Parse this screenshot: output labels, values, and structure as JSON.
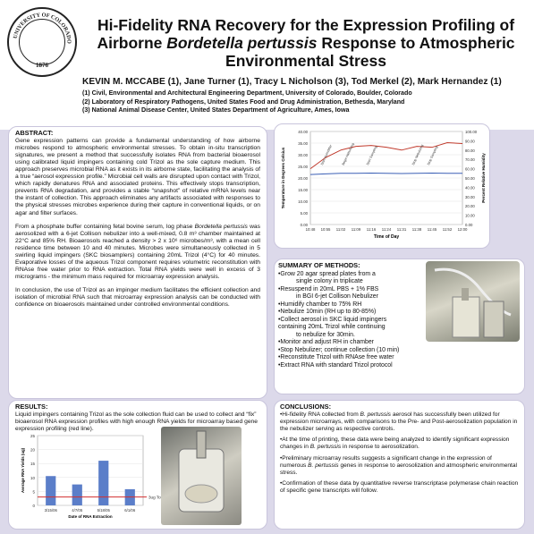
{
  "header": {
    "seal": {
      "text": "UNIVERSITY OF COLORADO",
      "year": "1876"
    },
    "title_1": "Hi-Fidelity RNA Recovery for the Expression Profiling of",
    "title_2a": "Airborne ",
    "title_2b": "Bordetella pertussis",
    "title_2c": " Response to Atmospheric",
    "title_3": "Environmental Stress",
    "authors": "KEVIN M. MCCABE (1), Jane Turner (1), Tracy L Nicholson (3), Tod Merkel (2), Mark Hernandez (1)",
    "affiliations": [
      "(1) Civil, Environmental and Architectural Engineering Department, University of Colorado, Boulder, Colorado",
      "(2) Laboratory of Respiratory Pathogens, United States Food and Drug Administration, Bethesda, Maryland",
      "(3) National Animal Disease Center, United States Department of Agriculture, Ames, Iowa"
    ]
  },
  "abstract": {
    "heading": "ABSTRACT:",
    "p1": "Gene expression patterns can provide a fundamental understanding of how airborne microbes respond to atmospheric environmental stresses. To obtain in-situ transcription signatures, we present a method that successfully isolates RNA from bacterial bioaerosol using calibrated liquid impingers containing cold Trizol as the sole capture medium. This approach preserves microbial RNA as it exists in its airborne state, facilitating the analysis of a true “aerosol expression profile.” Microbial cell walls are disrupted upon contact with Trizol, which rapidly denatures RNA and associated proteins. This effectively stops transcription, prevents RNA degradation, and provides a stable “snapshot” of relative mRNA levels near the instant of collection. This approach eliminates any artifacts associated with responses to the physical stresses microbes experience during their capture in conventional liquids, or on agar and filter surfaces.",
    "p2a": "From a phosphate buffer containing fetal bovine serum, log phase ",
    "p2b": "Bordetella pertussis",
    "p2c": " was aerosolized with a 6-jet Collison nebulizer into a well-mixed, 0.8 m³ chamber maintained at 22°C and 85% RH. Bioaerosols reached a density > 2 x 10⁶ microbes/m³, with a mean cell residence time between 10 and 40 minutes. Microbes were simultaneously collected in 5 swirling liquid impingers (SKC biosamplers) containing 20mL Trizol (4°C) for 40 minutes. Evaporative losses of the aqueous Trizol component requires volumetric reconstitution with RNAse free water prior to RNA extraction. Total RNA yields were well in excess of 3 micrograms - the minimum mass required for microarray expression analysis.",
    "p3": "In conclusion, the use of Trizol as an impinger medium facilitates the efficient collection and isolation of microbial RNA such that microarray expression analysis can be conducted with confidence on bioaerosols maintained under controlled environmental conditions."
  },
  "results": {
    "heading": "RESULTS:",
    "text": "Liquid impingers containing Trizol as the sole collection fluid can be used to collect and “fix” bioaerosol RNA expression profiles with high enough RNA yields for microarray based gene expression profiling (red line)."
  },
  "methods": {
    "heading": "SUMMARY OF METHODS:",
    "items": [
      "•Grow 20 agar spread plates from a",
      "single colony in triplicate",
      "•Resuspend in 20mL PBS + 1% FBS",
      "in BGI 6-jet Collison Nebulizer",
      "•Humidify chamber to 75% RH",
      "•Nebulize 10min (RH up to 80-85%)",
      "•Collect aerosol in SKC liquid impingers",
      "containing 20mL Trizol while continuing",
      "to nebulize for 30min.",
      "•Monitor and adjust RH in chamber",
      "•Stop Nebulizer; continue collection (10 min)",
      "•Reconstitute Trizol with RNAse free water",
      "•Extract RNA with standard Trizol protocol"
    ]
  },
  "conclusions": {
    "heading": "CONCLUSIONS:",
    "c1a": "•Hi-fidelity RNA collected from ",
    "c1b": "B. pertussis",
    "c1c": " aerosol has successfully been utilized for expression microarrays, with comparisons to the Pre- and Post-aerosolization population in the nebulizer serving as respective controls.",
    "c2a": "•At the time of printing, these data were being analyzed to identify significant expression changes in ",
    "c2b": "B. pertussis",
    "c2c": " in response to aerosolization.",
    "c3a": "•Preliminary microarray results suggests a significant change in the expression of numerous ",
    "c3b": "B. pertussis",
    "c3c": " genes in response to aerosolization and atmospheric environmental stress.",
    "c4": "•Confirmation of these data by quantitative reverse transcriptase polymerase chain reaction of specific gene transcripts will follow."
  },
  "chart_data": [
    {
      "type": "line",
      "title": "",
      "xlabel": "Time of Day",
      "ylabel": "Temperature in Degrees Celsius",
      "y2label": "Percent Relative Humidity",
      "x": [
        "10:48",
        "10:55",
        "11:02",
        "11:09",
        "11:16",
        "11:24",
        "11:31",
        "11:38",
        "11:45",
        "11:52",
        "12:00"
      ],
      "ylim": [
        0,
        40
      ],
      "yticks": [
        0,
        5,
        10,
        15,
        20,
        25,
        30,
        35,
        40
      ],
      "y2lim": [
        0,
        100
      ],
      "y2ticks": [
        "0.00",
        "10.00",
        "20.00",
        "30.00",
        "40.00",
        "50.00",
        "60.00",
        "70.00",
        "80.00",
        "90.00",
        "100.00"
      ],
      "series": [
        {
          "color": "#c0392b",
          "axis": "y2",
          "values": [
            60,
            72,
            80,
            84,
            85,
            83,
            80,
            84,
            83,
            88,
            87
          ]
        },
        {
          "color": "#3b5fb5",
          "axis": "y",
          "values": [
            21.5,
            21.8,
            22,
            22,
            22.1,
            22,
            21.9,
            22,
            22.1,
            22,
            22
          ]
        }
      ],
      "annotations": [
        "Start Humidifier",
        "Begin Nebulizing",
        "Start Sampling",
        "Stop Nebulizing",
        "Stop Sampling"
      ],
      "grid": true
    },
    {
      "type": "bar",
      "ylabel": "Average RNA Yields (ug)",
      "xlabel": "Date of RNA Extraction",
      "categories": [
        "3/15/06",
        "4/7/05",
        "5/18/05",
        "6/1/06"
      ],
      "values": [
        10.5,
        7.5,
        16,
        5.8
      ],
      "ylim": [
        0,
        25
      ],
      "yticks": [
        0,
        5,
        10,
        15,
        20,
        25
      ],
      "threshold": {
        "value": 3,
        "label": "3ug Total RNA",
        "color": "#d32f2f"
      },
      "color": "#5b7ec9",
      "grid": true
    }
  ]
}
